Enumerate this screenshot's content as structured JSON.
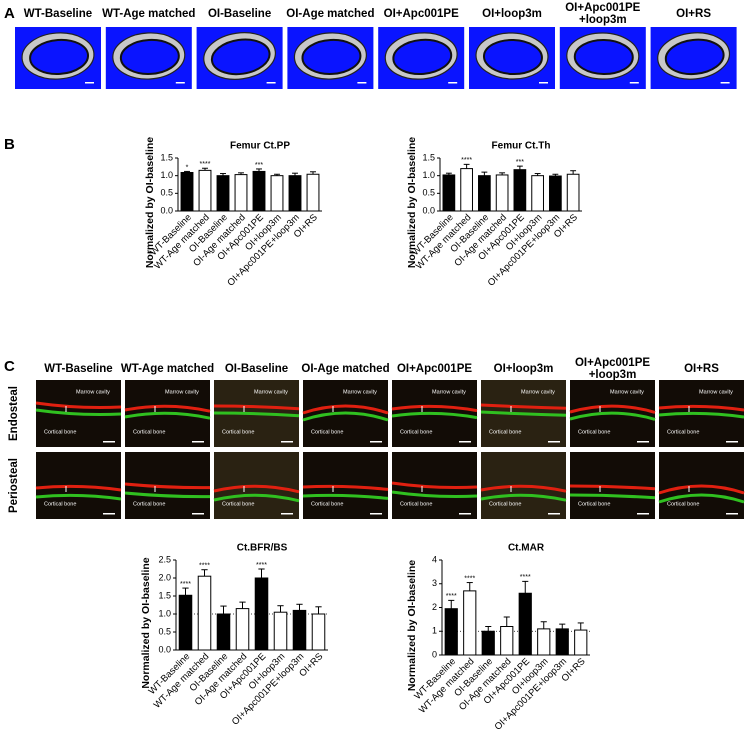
{
  "panel_a": {
    "label": "A",
    "titles": [
      [
        "WT-Baseline"
      ],
      [
        "WT-Age matched"
      ],
      [
        "OI-Baseline"
      ],
      [
        "OI-Age matched"
      ],
      [
        "OI+Apc001PE"
      ],
      [
        "OI+loop3m"
      ],
      [
        "OI+Apc001PE",
        "+loop3m"
      ],
      [
        "OI+RS"
      ]
    ]
  },
  "panel_b": {
    "label": "B"
  },
  "panel_c": {
    "label": "C",
    "titles": [
      [
        "WT-Baseline"
      ],
      [
        "WT-Age matched"
      ],
      [
        "OI-Baseline"
      ],
      [
        "OI-Age matched"
      ],
      [
        "OI+Apc001PE"
      ],
      [
        "OI+loop3m"
      ],
      [
        "OI+Apc001PE",
        "+loop3m"
      ],
      [
        "OI+RS"
      ]
    ],
    "rows": [
      "Endosteal",
      "Periosteal"
    ],
    "marrow": "Marrow cavity",
    "cortical": "Cortical bone"
  },
  "chart_data": [
    {
      "type": "bar",
      "title": "Femur Ct.PP",
      "y_label": "Normalized by  OI-baseline",
      "categories": [
        "WT-Baseline",
        "WT-Age matched",
        "OI-Baseline",
        "OI-Age matched",
        "OI+Apc001PE",
        "OI+loop3m",
        "OI+Apc001PE+loop3m",
        "OI+RS"
      ],
      "values": [
        1.09,
        1.15,
        1.0,
        1.03,
        1.12,
        1.0,
        1.0,
        1.04
      ],
      "errors": [
        0.03,
        0.06,
        0.06,
        0.05,
        0.07,
        0.04,
        0.07,
        0.07
      ],
      "annotations": [
        "*",
        "****",
        null,
        null,
        "***",
        null,
        null,
        null
      ],
      "colors": [
        "#000000",
        "#ffffff",
        "#000000",
        "#ffffff",
        "#000000",
        "#ffffff",
        "#000000",
        "#ffffff"
      ],
      "ylim": [
        0,
        1.5
      ],
      "yticks": [
        {
          "value": 0,
          "label": "0.0"
        },
        0.5,
        {
          "value": 1,
          "label": "1.0"
        },
        1.5
      ]
    },
    {
      "type": "bar",
      "title": "Femur Ct.Th",
      "y_label": "Normalized by  OI-baseline",
      "categories": [
        "WT-Baseline",
        "WT-Age matched",
        "OI-Baseline",
        "OI-Age matched",
        "OI+Apc001PE",
        "OI+loop3m",
        "OI+Apc001PE+loop3m",
        "OI+RS"
      ],
      "values": [
        1.02,
        1.2,
        1.0,
        1.02,
        1.17,
        1.0,
        0.99,
        1.04
      ],
      "errors": [
        0.05,
        0.12,
        0.1,
        0.06,
        0.1,
        0.06,
        0.05,
        0.1
      ],
      "annotations": [
        null,
        "****",
        null,
        null,
        "***",
        null,
        null,
        null
      ],
      "colors": [
        "#000000",
        "#ffffff",
        "#000000",
        "#ffffff",
        "#000000",
        "#ffffff",
        "#000000",
        "#ffffff"
      ],
      "ylim": [
        0,
        1.5
      ],
      "yticks": [
        {
          "value": 0,
          "label": "0.0"
        },
        0.5,
        {
          "value": 1,
          "label": "1.0"
        },
        1.5
      ]
    },
    {
      "type": "bar",
      "title": "Ct.BFR/BS",
      "y_label": "Normalized by  OI-baseline",
      "categories": [
        "WT-Baseline",
        "WT-Age matched",
        "OI-Baseline",
        "OI-Age matched",
        "OI+Apc001PE",
        "OI+loop3m",
        "OI+Apc001PE+loop3m",
        "OI+RS"
      ],
      "values": [
        1.52,
        2.05,
        1.0,
        1.15,
        2.0,
        1.05,
        1.1,
        1.0
      ],
      "errors": [
        0.2,
        0.18,
        0.22,
        0.18,
        0.25,
        0.18,
        0.17,
        0.2
      ],
      "annotations": [
        "****",
        "****",
        null,
        null,
        "****",
        null,
        null,
        null
      ],
      "colors": [
        "#000000",
        "#ffffff",
        "#000000",
        "#ffffff",
        "#000000",
        "#ffffff",
        "#000000",
        "#ffffff"
      ],
      "ylim": [
        0,
        2.5
      ],
      "yticks": [
        {
          "value": 0,
          "label": "0.0"
        },
        0.5,
        {
          "value": 1,
          "label": "1.0"
        },
        1.5,
        {
          "value": 2,
          "label": "2.0"
        },
        2.5
      ],
      "reference_line": 1
    },
    {
      "type": "bar",
      "title": "Ct.MAR",
      "y_label": "Normalized by  OI-baseline",
      "categories": [
        "WT-Baseline",
        "WT-Age matched",
        "OI-Baseline",
        "OI-Age matched",
        "OI+Apc001PE",
        "OI+loop3m",
        "OI+Apc001PE+loop3m",
        "OI+RS"
      ],
      "values": [
        1.95,
        2.7,
        1.0,
        1.2,
        2.6,
        1.1,
        1.1,
        1.05
      ],
      "errors": [
        0.35,
        0.35,
        0.2,
        0.4,
        0.5,
        0.3,
        0.2,
        0.3
      ],
      "annotations": [
        "****",
        "****",
        null,
        null,
        "****",
        null,
        null,
        null
      ],
      "colors": [
        "#000000",
        "#ffffff",
        "#000000",
        "#ffffff",
        "#000000",
        "#ffffff",
        "#000000",
        "#ffffff"
      ],
      "ylim": [
        0,
        4
      ],
      "yticks": [
        0,
        1,
        2,
        3,
        4
      ],
      "reference_line": 1
    }
  ]
}
